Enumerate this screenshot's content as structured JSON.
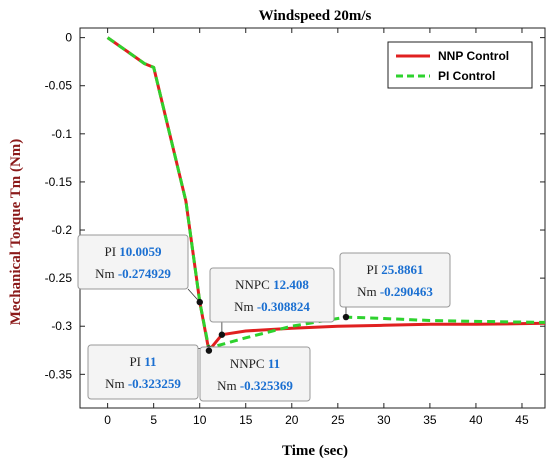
{
  "chart_data": {
    "type": "line",
    "title": "Windspeed 20m/s",
    "xlabel": "Time (sec)",
    "ylabel": "Mechanical Torque Tm (Nm)",
    "xlim": [
      -3,
      47.5
    ],
    "ylim": [
      -0.385,
      0.01
    ],
    "x_ticks": [
      0,
      5,
      10,
      15,
      20,
      25,
      30,
      35,
      40,
      45
    ],
    "x_tick_labels": [
      "0",
      "5",
      "10",
      "15",
      "20",
      "25",
      "30",
      "35",
      "40",
      "45"
    ],
    "y_ticks": [
      0,
      -0.05,
      -0.1,
      -0.15,
      -0.2,
      -0.25,
      -0.3,
      -0.35
    ],
    "y_tick_labels": [
      "0",
      "-0.05",
      "-0.1",
      "-0.15",
      "-0.2",
      "-0.25",
      "-0.3",
      "-0.35"
    ],
    "grid": false,
    "legend_position": "top-right",
    "series": [
      {
        "name": "NNP Control",
        "color": "#e02020",
        "style": "solid",
        "x": [
          0,
          4,
          5,
          8.5,
          10.0059,
          11,
          12.408,
          15,
          20,
          25,
          30,
          35,
          40,
          47.5
        ],
        "y": [
          0,
          -0.027,
          -0.031,
          -0.17,
          -0.274929,
          -0.325369,
          -0.308824,
          -0.305,
          -0.302,
          -0.3,
          -0.299,
          -0.298,
          -0.298,
          -0.297
        ]
      },
      {
        "name": "PI Control",
        "color": "#2ed22e",
        "style": "dashed",
        "x": [
          0,
          4,
          5,
          8.5,
          10.0059,
          11,
          12,
          15,
          20,
          25.8861,
          30,
          35,
          40,
          47.5
        ],
        "y": [
          0,
          -0.027,
          -0.031,
          -0.17,
          -0.274929,
          -0.323259,
          -0.32,
          -0.312,
          -0.3,
          -0.290463,
          -0.292,
          -0.294,
          -0.295,
          -0.296
        ]
      }
    ],
    "annotations": [
      {
        "lines": [
          {
            "label": "PI",
            "value": "10.0059"
          },
          {
            "label": "Nm",
            "value": "-0.274929"
          }
        ],
        "point": [
          10.0059,
          -0.274929
        ]
      },
      {
        "lines": [
          {
            "label": "PI",
            "value": "11"
          },
          {
            "label": "Nm",
            "value": "-0.323259"
          }
        ],
        "point": [
          11,
          -0.323259
        ]
      },
      {
        "lines": [
          {
            "label": "NNPC",
            "value": "12.408"
          },
          {
            "label": "Nm",
            "value": "-0.308824"
          }
        ],
        "point": [
          12.408,
          -0.308824
        ]
      },
      {
        "lines": [
          {
            "label": "NNPC",
            "value": "11"
          },
          {
            "label": "Nm",
            "value": "-0.325369"
          }
        ],
        "point": [
          11,
          -0.325369
        ]
      },
      {
        "lines": [
          {
            "label": "PI",
            "value": "25.8861"
          },
          {
            "label": "Nm",
            "value": "-0.290463"
          }
        ],
        "point": [
          25.8861,
          -0.290463
        ]
      }
    ]
  },
  "colors": {
    "ylabel": "#8b1a1a",
    "tooltip_value": "#1a6fd1",
    "tooltip_bg": "#f4f4f4"
  }
}
